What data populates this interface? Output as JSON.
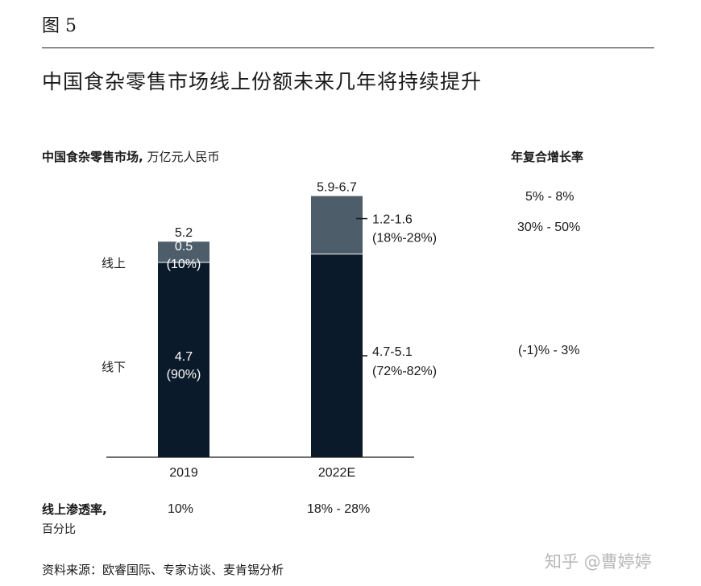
{
  "figure_label": "图 5",
  "title": "中国食杂零售市场线上份额未来几年将持续提升",
  "subtitle_bold": "中国食杂零售市场,",
  "subtitle_unit": " 万亿元人民币",
  "cagr_header": "年复合增长率",
  "cagr_total": "5% -  8%",
  "cagr_online": "30% - 50%",
  "cagr_offline": "(-1)% - 3%",
  "label_online": "线上",
  "label_offline": "线下",
  "penetration_header": "线上渗透率,",
  "penetration_sub": "百分比",
  "penetration_values": [
    "10%",
    "18% - 28%"
  ],
  "source": "资料来源：欧睿国际、专家访谈、麦肯锡分析",
  "watermark": "知乎 @曹婷婷",
  "colors": {
    "offline": "#0b1a2a",
    "online": "#4e5d6a",
    "axis": "#1a1a1a"
  },
  "chart_data": {
    "type": "bar",
    "stacked": true,
    "categories": [
      "2019",
      "2022E"
    ],
    "series": [
      {
        "name": "线下",
        "values": [
          4.7,
          4.9
        ],
        "labels": [
          "4.7",
          "4.7-5.1"
        ],
        "share_labels": [
          "(90%)",
          "(72%-82%)"
        ]
      },
      {
        "name": "线上",
        "values": [
          0.5,
          1.4
        ],
        "labels": [
          "0.5",
          "1.2-1.6"
        ],
        "share_labels": [
          "(10%)",
          "(18%-28%)"
        ]
      }
    ],
    "totals": [
      "5.2",
      "5.9-6.7"
    ],
    "unit": "万亿元人民币"
  }
}
